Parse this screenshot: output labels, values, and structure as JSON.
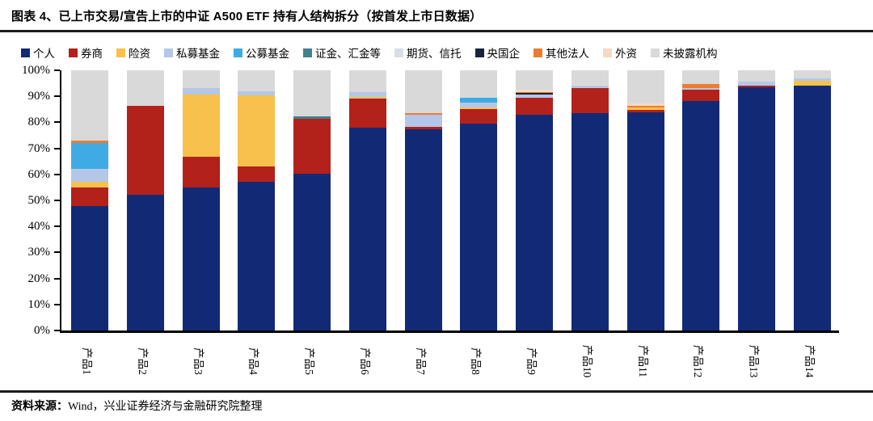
{
  "header": {
    "title": "图表 4、已上市交易/宣告上市的中证 A500 ETF 持有人结构拆分（按首发上市日数据）"
  },
  "footer": {
    "source_label": "资料来源：",
    "source_text": "Wind，兴业证券经济与金融研究院整理"
  },
  "chart_data": {
    "type": "bar",
    "stacked": true,
    "percent_stacked": true,
    "grid": false,
    "legend_position": "top",
    "ylim": [
      0,
      100
    ],
    "yticks": [
      "0%",
      "10%",
      "20%",
      "30%",
      "40%",
      "50%",
      "60%",
      "70%",
      "80%",
      "90%",
      "100%"
    ],
    "categories": [
      "产品1",
      "产品2",
      "产品3",
      "产品4",
      "产品5",
      "产品6",
      "产品7",
      "产品8",
      "产品9",
      "产品10",
      "产品11",
      "产品12",
      "产品13",
      "产品14"
    ],
    "series": [
      {
        "name": "个人",
        "color": "#122A76",
        "values": [
          47.7,
          52.3,
          55.1,
          57.0,
          60.1,
          77.9,
          77.3,
          79.4,
          82.9,
          83.5,
          84.0,
          88.2,
          93.5,
          94.1
        ]
      },
      {
        "name": "券商",
        "color": "#B3211B",
        "values": [
          7.4,
          33.9,
          11.6,
          6.2,
          21.2,
          11.2,
          0.9,
          5.6,
          6.5,
          9.6,
          0.8,
          4.3,
          0.6,
          0
        ]
      },
      {
        "name": "险资",
        "color": "#F8C14B",
        "values": [
          1.9,
          0,
          24.0,
          27.1,
          0,
          0.6,
          0,
          0.6,
          0,
          0,
          0.9,
          0,
          0,
          1.9
        ]
      },
      {
        "name": "私募基金",
        "color": "#B5C7E8",
        "values": [
          5.0,
          0,
          2.4,
          1.6,
          0,
          1.9,
          4.8,
          1.9,
          1.4,
          1.0,
          0,
          0.6,
          1.6,
          0.9
        ]
      },
      {
        "name": "公募基金",
        "color": "#3FABE4",
        "values": [
          10.1,
          0,
          0,
          0,
          0,
          0,
          0,
          1.9,
          0,
          0,
          0,
          0,
          0,
          0
        ]
      },
      {
        "name": "证金、汇金等",
        "color": "#43808E",
        "values": [
          0,
          0,
          0,
          0,
          0.9,
          0,
          0,
          0,
          0,
          0,
          0,
          0,
          0,
          0
        ]
      },
      {
        "name": "期货、信托",
        "color": "#D9DDE6",
        "values": [
          0,
          0,
          0,
          0,
          0,
          0,
          0,
          0,
          0,
          0,
          0,
          0,
          0,
          0
        ]
      },
      {
        "name": "央国企",
        "color": "#17243E",
        "values": [
          0,
          0,
          0,
          0,
          0,
          0,
          0,
          0,
          0.5,
          0,
          0,
          0,
          0,
          0
        ]
      },
      {
        "name": "其他法人",
        "color": "#EB7D33",
        "values": [
          0.9,
          0,
          0,
          0,
          0,
          0,
          0.7,
          0,
          0.4,
          0,
          0.5,
          1.6,
          0,
          0
        ]
      },
      {
        "name": "外资",
        "color": "#F6D9C2",
        "values": [
          0,
          0,
          0,
          0,
          0,
          0,
          0,
          0,
          0.9,
          0.4,
          1.1,
          0,
          0,
          0
        ]
      },
      {
        "name": "未披露机构",
        "color": "#D9D9D9",
        "values": [
          27.0,
          13.8,
          6.9,
          8.1,
          17.8,
          8.4,
          16.3,
          10.6,
          7.4,
          5.5,
          12.7,
          5.3,
          4.3,
          3.1
        ]
      }
    ],
    "title": "已上市交易/宣告上市的中证 A500 ETF 持有人结构拆分（按首发上市日数据）",
    "xlabel": "",
    "ylabel": ""
  }
}
